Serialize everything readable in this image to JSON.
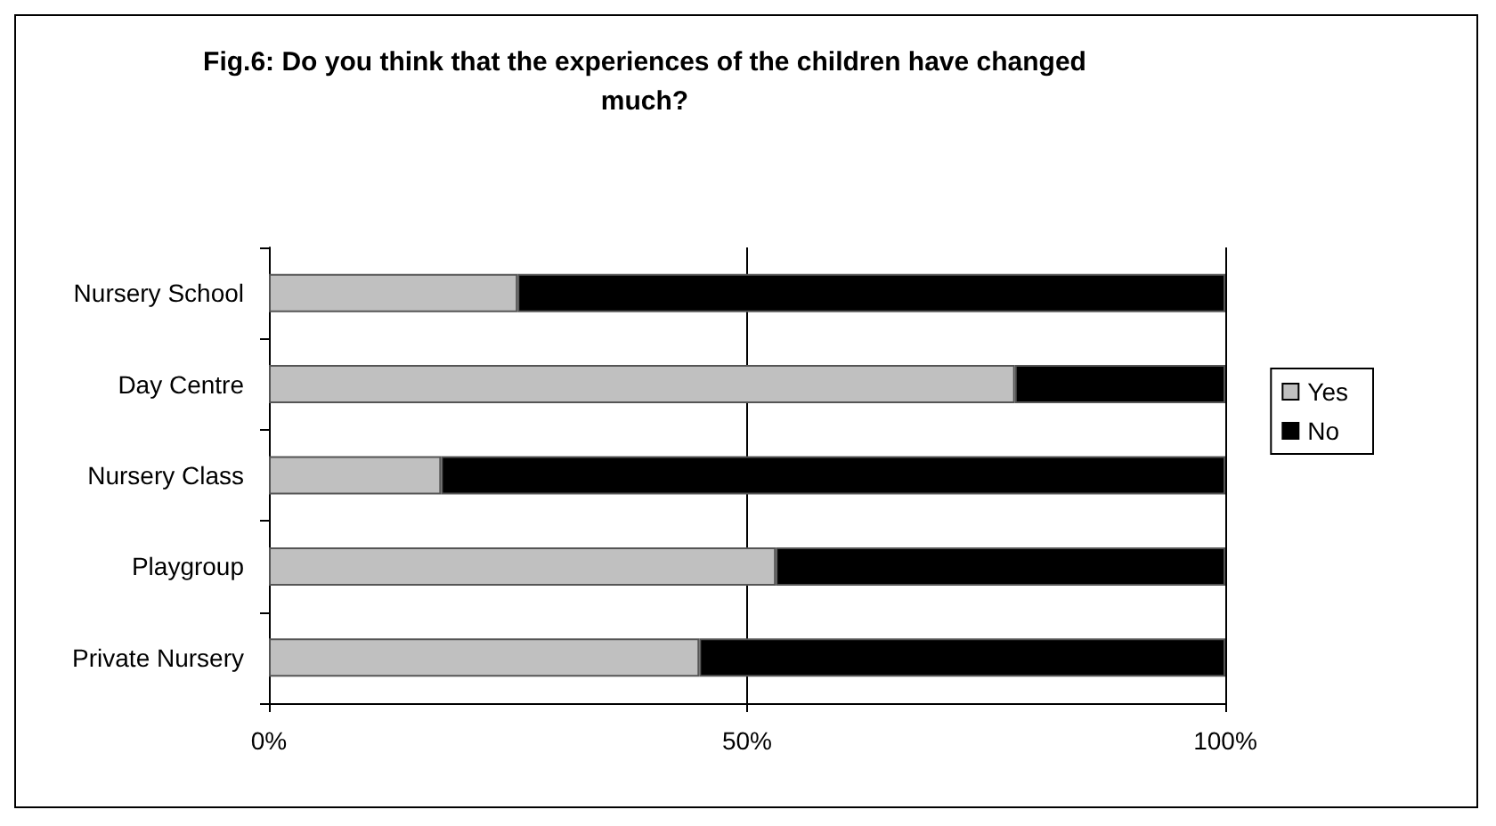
{
  "chart_data": {
    "type": "bar",
    "orientation": "horizontal",
    "stacked": true,
    "title": "Fig.6: Do you think that the experiences of the children have changed\nmuch?",
    "categories": [
      "Nursery School",
      "Day Centre",
      "Nursery Class",
      "Playgroup",
      "Private Nursery"
    ],
    "series": [
      {
        "name": "Yes",
        "color": "#c0c0c0",
        "values": [
          26,
          78,
          18,
          53,
          45
        ]
      },
      {
        "name": "No",
        "color": "#000000",
        "values": [
          74,
          22,
          82,
          47,
          55
        ]
      }
    ],
    "xlim": [
      0,
      100
    ],
    "xticks": [
      {
        "value": 0,
        "label": "0%"
      },
      {
        "value": 50,
        "label": "50%"
      },
      {
        "value": 100,
        "label": "100%"
      }
    ],
    "grid": "x",
    "legend": "right"
  }
}
